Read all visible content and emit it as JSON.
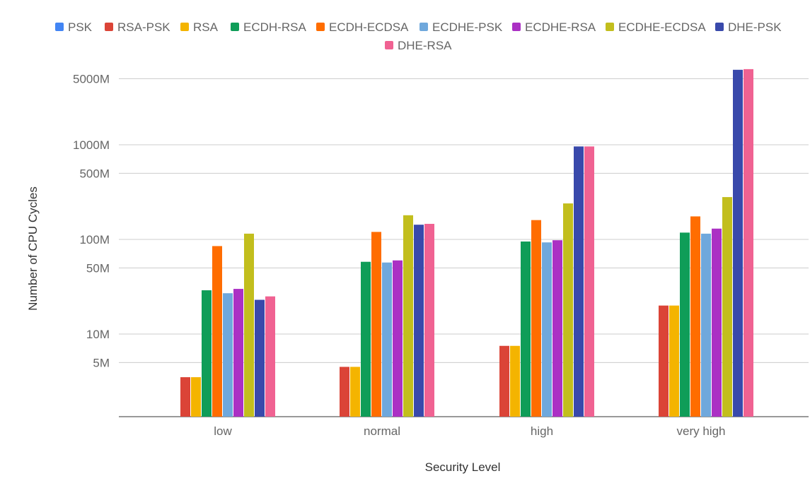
{
  "chart_data": {
    "type": "bar",
    "title": "",
    "xlabel": "Security Level",
    "ylabel": "Number of CPU Cycles",
    "yscale": "log",
    "ylim_millions": [
      2,
      8000
    ],
    "grid": true,
    "legend_position": "top",
    "y_ticks": [
      {
        "value": 5,
        "label": "5M"
      },
      {
        "value": 10,
        "label": "10M"
      },
      {
        "value": 50,
        "label": "50M"
      },
      {
        "value": 100,
        "label": "100M"
      },
      {
        "value": 500,
        "label": "500M"
      },
      {
        "value": 1000,
        "label": "1000M"
      },
      {
        "value": 5000,
        "label": "5000M"
      }
    ],
    "categories": [
      "low",
      "normal",
      "high",
      "very high"
    ],
    "series": [
      {
        "name": "PSK",
        "color": "#4285F4",
        "values": [
          null,
          null,
          null,
          null
        ]
      },
      {
        "name": "RSA-PSK",
        "color": "#DB4437",
        "values": [
          3.5,
          4.5,
          7.5,
          20
        ]
      },
      {
        "name": "RSA",
        "color": "#F4B400",
        "values": [
          3.5,
          4.5,
          7.5,
          20
        ]
      },
      {
        "name": "ECDH-RSA",
        "color": "#0F9D58",
        "values": [
          29,
          58,
          95,
          118
        ]
      },
      {
        "name": "ECDH-ECDSA",
        "color": "#FF6D00",
        "values": [
          85,
          120,
          160,
          175
        ]
      },
      {
        "name": "ECDHE-PSK",
        "color": "#6FA8DC",
        "values": [
          27,
          57,
          93,
          115
        ]
      },
      {
        "name": "ECDHE-RSA",
        "color": "#AB30C4",
        "values": [
          30,
          60,
          98,
          130
        ]
      },
      {
        "name": "ECDHE-ECDSA",
        "color": "#C2BE1D",
        "values": [
          115,
          180,
          240,
          280
        ]
      },
      {
        "name": "DHE-PSK",
        "color": "#3949AB",
        "values": [
          23,
          143,
          960,
          6200
        ]
      },
      {
        "name": "DHE-RSA",
        "color": "#F06292",
        "values": [
          25,
          146,
          960,
          6300
        ]
      }
    ]
  }
}
